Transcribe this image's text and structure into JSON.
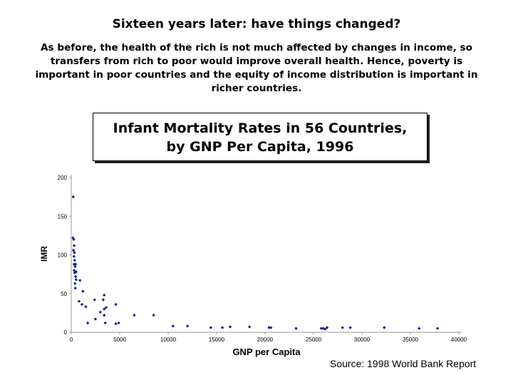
{
  "slide": {
    "title": "Sixteen years later: have things changed?",
    "body": "As before, the health of the rich is not much affected by changes in income, so transfers from rich to poor would improve overall health. Hence, poverty is important in poor countries and the equity of income distribution is important in richer countries.",
    "source": "Source: 1998 World Bank Report"
  },
  "chart_data": {
    "type": "scatter",
    "title_line1": "Infant Mortality Rates in 56 Countries,",
    "title_line2": "by GNP Per Capita, 1996",
    "xlabel": "GNP per Capita",
    "ylabel": "IMR",
    "xlim": [
      0,
      40000
    ],
    "ylim": [
      0,
      200
    ],
    "xticks": [
      0,
      5000,
      10000,
      15000,
      20000,
      25000,
      30000,
      35000,
      40000
    ],
    "yticks": [
      0,
      50,
      100,
      150,
      200
    ],
    "grid": false,
    "marker_color": "#1a1f8c",
    "points": [
      [
        200,
        175
      ],
      [
        180,
        122
      ],
      [
        260,
        120
      ],
      [
        300,
        112
      ],
      [
        220,
        106
      ],
      [
        320,
        103
      ],
      [
        280,
        98
      ],
      [
        350,
        93
      ],
      [
        300,
        88
      ],
      [
        450,
        88
      ],
      [
        400,
        85
      ],
      [
        300,
        80
      ],
      [
        500,
        78
      ],
      [
        350,
        77
      ],
      [
        450,
        72
      ],
      [
        500,
        68
      ],
      [
        900,
        67
      ],
      [
        380,
        63
      ],
      [
        420,
        57
      ],
      [
        1200,
        53
      ],
      [
        800,
        40
      ],
      [
        1100,
        36
      ],
      [
        1500,
        33
      ],
      [
        2400,
        42
      ],
      [
        3300,
        42
      ],
      [
        3400,
        48
      ],
      [
        3600,
        32
      ],
      [
        3400,
        30
      ],
      [
        3000,
        26
      ],
      [
        3400,
        22
      ],
      [
        4600,
        36
      ],
      [
        2500,
        17
      ],
      [
        1700,
        12
      ],
      [
        3500,
        12
      ],
      [
        4600,
        11
      ],
      [
        4900,
        12
      ],
      [
        6500,
        22
      ],
      [
        8500,
        22
      ],
      [
        10500,
        8
      ],
      [
        12000,
        8
      ],
      [
        14400,
        6
      ],
      [
        15600,
        6
      ],
      [
        16400,
        7
      ],
      [
        18400,
        7
      ],
      [
        20400,
        6
      ],
      [
        20600,
        6
      ],
      [
        23200,
        5
      ],
      [
        25800,
        5
      ],
      [
        26000,
        5
      ],
      [
        26400,
        6
      ],
      [
        28000,
        6
      ],
      [
        28800,
        6
      ],
      [
        32300,
        6
      ],
      [
        35900,
        5
      ],
      [
        37800,
        5
      ],
      [
        26200,
        4
      ]
    ]
  }
}
